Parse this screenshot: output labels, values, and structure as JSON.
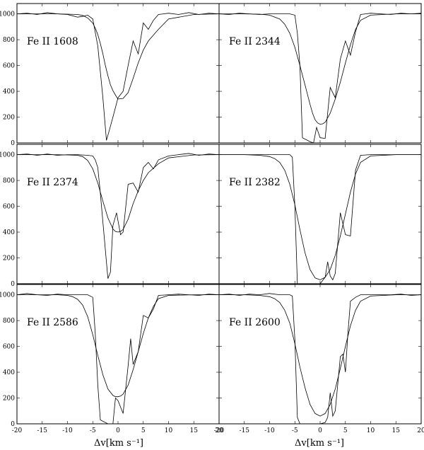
{
  "chart_data": [
    {
      "type": "line",
      "label": "Fe II 1608",
      "xlim": [
        -20,
        20
      ],
      "ylim": [
        0,
        1080
      ],
      "xticks": [
        -20,
        -15,
        -10,
        -5,
        0,
        5,
        10,
        15,
        20
      ],
      "yticks": [
        0,
        200,
        400,
        600,
        800,
        1000
      ],
      "series": [
        {
          "x": [
            -20,
            -15,
            -12,
            -10,
            -8,
            -7,
            -6,
            -5,
            -4.5,
            -4,
            -3.5,
            -3,
            -2.5,
            -2,
            -1.5,
            -1,
            -0.5,
            0,
            1,
            2,
            3,
            4,
            5,
            6,
            8,
            10,
            15,
            20
          ],
          "y": [
            1000,
            1000,
            1000,
            998,
            995,
            988,
            968,
            928,
            890,
            840,
            770,
            690,
            600,
            520,
            450,
            405,
            370,
            340,
            345,
            390,
            500,
            620,
            720,
            790,
            880,
            960,
            995,
            1000
          ]
        },
        {
          "x": [
            -20,
            -18,
            -16,
            -14,
            -12,
            -10,
            -9,
            -8,
            -7,
            -6,
            -5,
            -4,
            -3,
            -2.3,
            -1.7,
            -1,
            0,
            1,
            2,
            3,
            4,
            5,
            6,
            7,
            8,
            9,
            10,
            12,
            14,
            16,
            18,
            20
          ],
          "y": [
            1000,
            1005,
            995,
            1010,
            1000,
            995,
            985,
            975,
            980,
            990,
            960,
            750,
            350,
            20,
            100,
            200,
            350,
            400,
            600,
            790,
            690,
            930,
            880,
            950,
            995,
            1000,
            1005,
            995,
            1010,
            995,
            1005,
            1000
          ]
        }
      ]
    },
    {
      "type": "line",
      "label": "Fe II 2344",
      "xlim": [
        -20,
        20
      ],
      "ylim": [
        0,
        1080
      ],
      "xticks": [
        -20,
        -15,
        -10,
        -5,
        0,
        5,
        10,
        15,
        20
      ],
      "yticks": [
        0,
        200,
        400,
        600,
        800,
        1000
      ],
      "series": [
        {
          "x": [
            -20,
            -15,
            -12,
            -10,
            -8,
            -7,
            -6,
            -5,
            -4,
            -3,
            -2,
            -1.5,
            -1,
            -0.5,
            0,
            0.5,
            1,
            2,
            3,
            4,
            5,
            6,
            7,
            8,
            10,
            15,
            20
          ],
          "y": [
            1000,
            1000,
            998,
            990,
            960,
            920,
            850,
            740,
            600,
            450,
            300,
            230,
            180,
            155,
            145,
            148,
            160,
            230,
            340,
            470,
            620,
            760,
            880,
            950,
            990,
            1000,
            1000
          ]
        },
        {
          "x": [
            -20,
            -18,
            -16,
            -14,
            -12,
            -10,
            -8,
            -6,
            -5,
            -4.5,
            -4,
            -3.5,
            -2,
            -1.3,
            -0.7,
            0,
            1,
            2,
            3,
            4,
            5,
            6,
            7,
            8,
            9,
            10,
            12,
            14,
            16,
            18,
            20
          ],
          "y": [
            1000,
            995,
            1005,
            1000,
            995,
            1000,
            1000,
            1000,
            990,
            850,
            600,
            40,
            10,
            0,
            120,
            40,
            35,
            430,
            350,
            650,
            790,
            680,
            860,
            995,
            1000,
            1005,
            1000,
            995,
            1005,
            1000,
            1005
          ]
        }
      ]
    },
    {
      "type": "line",
      "label": "Fe II 2374",
      "xlim": [
        -20,
        20
      ],
      "ylim": [
        0,
        1080
      ],
      "xticks": [
        -20,
        -15,
        -10,
        -5,
        0,
        5,
        10,
        15,
        20
      ],
      "yticks": [
        0,
        200,
        400,
        600,
        800,
        1000
      ],
      "series": [
        {
          "x": [
            -20,
            -15,
            -12,
            -10,
            -8,
            -7,
            -6,
            -5,
            -4,
            -3,
            -2,
            -1,
            -0.5,
            0,
            0.5,
            1,
            2,
            3,
            4,
            5,
            6,
            8,
            10,
            15,
            20
          ],
          "y": [
            1000,
            1000,
            1000,
            998,
            995,
            985,
            955,
            890,
            780,
            640,
            510,
            425,
            405,
            400,
            405,
            420,
            500,
            620,
            720,
            800,
            860,
            930,
            975,
            998,
            1000
          ]
        },
        {
          "x": [
            -20,
            -18,
            -16,
            -14,
            -12,
            -10,
            -8,
            -6,
            -5,
            -4.5,
            -4,
            -3.5,
            -2,
            -1.5,
            -1,
            -0.3,
            0.5,
            1,
            2,
            3,
            4,
            5,
            6,
            7,
            8,
            10,
            12,
            14,
            16,
            18,
            20
          ],
          "y": [
            1000,
            1005,
            995,
            1005,
            995,
            1000,
            1000,
            995,
            990,
            960,
            900,
            700,
            40,
            90,
            450,
            550,
            380,
            400,
            770,
            780,
            710,
            900,
            940,
            890,
            960,
            990,
            1000,
            1010,
            995,
            1005,
            1000
          ]
        }
      ]
    },
    {
      "type": "line",
      "label": "Fe II 2382",
      "xlim": [
        -20,
        20
      ],
      "ylim": [
        0,
        1080
      ],
      "xticks": [
        -20,
        -15,
        -10,
        -5,
        0,
        5,
        10,
        15,
        20
      ],
      "yticks": [
        0,
        200,
        400,
        600,
        800,
        1000
      ],
      "series": [
        {
          "x": [
            -20,
            -15,
            -12,
            -10,
            -9,
            -8,
            -7,
            -6,
            -5,
            -4,
            -3,
            -2,
            -1,
            0,
            1,
            2,
            3,
            4,
            5,
            6,
            7,
            8,
            10,
            15,
            20
          ],
          "y": [
            1000,
            1000,
            995,
            985,
            970,
            940,
            880,
            770,
            610,
            420,
            240,
            110,
            45,
            30,
            50,
            110,
            220,
            370,
            540,
            710,
            850,
            940,
            990,
            1000,
            1000
          ]
        },
        {
          "x": [
            -20,
            -18,
            -16,
            -14,
            -12,
            -10,
            -8,
            -6,
            -5.5,
            -5,
            -4.5,
            -4,
            -3,
            -2,
            -1,
            0,
            1,
            1.5,
            2,
            2.5,
            3,
            4,
            5,
            6,
            7,
            8,
            10,
            12,
            14,
            16,
            18,
            20
          ],
          "y": [
            1000,
            1000,
            1000,
            1000,
            1000,
            1000,
            1000,
            1000,
            980,
            600,
            0,
            0,
            0,
            0,
            0,
            0,
            50,
            170,
            60,
            30,
            80,
            550,
            380,
            370,
            880,
            995,
            1000,
            1000,
            1000,
            1000,
            1000,
            1000
          ]
        }
      ]
    },
    {
      "type": "line",
      "label": "Fe II 2586",
      "xlim": [
        -20,
        20
      ],
      "ylim": [
        0,
        1080
      ],
      "xticks": [
        -20,
        -15,
        -10,
        -5,
        0,
        5,
        10,
        15,
        20
      ],
      "yticks": [
        0,
        200,
        400,
        600,
        800,
        1000
      ],
      "series": [
        {
          "x": [
            -20,
            -15,
            -12,
            -10,
            -9,
            -8,
            -7,
            -6,
            -5,
            -4,
            -3,
            -2,
            -1,
            -0.5,
            0,
            0.5,
            1,
            2,
            3,
            4,
            5,
            6,
            7,
            8,
            10,
            15,
            20
          ],
          "y": [
            1000,
            1000,
            1000,
            995,
            985,
            965,
            920,
            830,
            690,
            530,
            380,
            270,
            220,
            210,
            210,
            215,
            230,
            300,
            420,
            560,
            700,
            820,
            910,
            970,
            995,
            1000,
            1000
          ]
        },
        {
          "x": [
            -20,
            -18,
            -16,
            -14,
            -12,
            -10,
            -8,
            -6,
            -5,
            -4.5,
            -4,
            -3.5,
            -2,
            -1,
            -0.5,
            0,
            1,
            2,
            2.5,
            3,
            4,
            5,
            6,
            7,
            8,
            10,
            12,
            14,
            16,
            18,
            20
          ],
          "y": [
            1000,
            1010,
            1000,
            995,
            1005,
            1000,
            1000,
            1000,
            980,
            700,
            300,
            30,
            0,
            0,
            200,
            180,
            80,
            450,
            660,
            460,
            560,
            840,
            820,
            890,
            995,
            1000,
            1005,
            1000,
            995,
            1005,
            1000
          ]
        }
      ]
    },
    {
      "type": "line",
      "label": "Fe II 2600",
      "xlim": [
        -20,
        20
      ],
      "ylim": [
        0,
        1080
      ],
      "xticks": [
        -20,
        -15,
        -10,
        -5,
        0,
        5,
        10,
        15,
        20
      ],
      "yticks": [
        0,
        200,
        400,
        600,
        800,
        1000
      ],
      "series": [
        {
          "x": [
            -20,
            -15,
            -12,
            -10,
            -9,
            -8,
            -7,
            -6,
            -5,
            -4,
            -3,
            -2,
            -1,
            0,
            1,
            2,
            3,
            4,
            5,
            6,
            7,
            8,
            10,
            15,
            20
          ],
          "y": [
            1000,
            1000,
            995,
            985,
            970,
            940,
            880,
            780,
            620,
            440,
            280,
            150,
            80,
            60,
            80,
            150,
            270,
            430,
            600,
            760,
            880,
            950,
            990,
            1000,
            1000
          ]
        },
        {
          "x": [
            -20,
            -18,
            -16,
            -14,
            -12,
            -10,
            -8,
            -6,
            -5.5,
            -5,
            -4.5,
            -4,
            -3,
            -2,
            -1,
            0,
            1,
            1.5,
            2,
            2.5,
            3,
            4,
            4.5,
            5,
            5.5,
            6,
            7,
            8,
            10,
            12,
            14,
            16,
            18,
            20
          ],
          "y": [
            1000,
            1005,
            995,
            1005,
            1000,
            1010,
            1000,
            1000,
            990,
            650,
            50,
            0,
            0,
            0,
            0,
            0,
            10,
            50,
            240,
            60,
            100,
            520,
            540,
            400,
            700,
            950,
            980,
            1000,
            1000,
            1000,
            1000,
            1005,
            995,
            1000
          ]
        }
      ]
    }
  ],
  "xlabel_left": "Δv[km s⁻¹]",
  "xlabel_right": "Δv[km s⁻¹]"
}
